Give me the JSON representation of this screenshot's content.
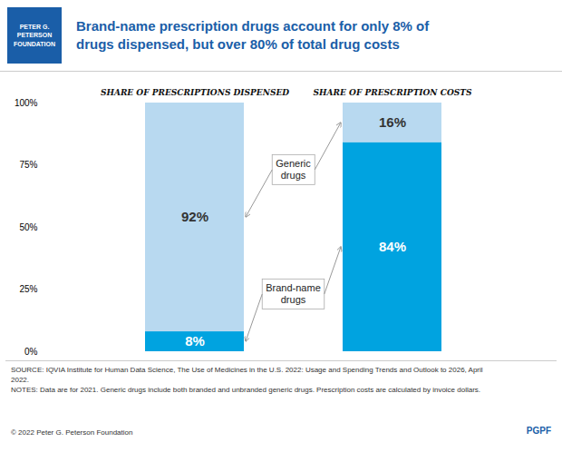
{
  "chart_data": {
    "type": "bar",
    "title": "Brand-name prescription drugs account for only 8% of\ndrugs dispensed, but over 80% of total drug costs",
    "categories": [
      "SHARE OF PRESCRIPTIONS DISPENSED",
      "SHARE OF PRESCRIPTION COSTS"
    ],
    "series": [
      {
        "name": "Generic\ndrugs",
        "color": "#b8d9f0",
        "values": [
          92,
          16
        ],
        "value_labels": [
          "92%",
          "16%"
        ]
      },
      {
        "name": "Brand-name\ndrugs",
        "color": "#00a3e0",
        "values": [
          8,
          84
        ],
        "value_labels": [
          "8%",
          "84%"
        ]
      }
    ],
    "stacked": true,
    "data_labels": true,
    "grid": false,
    "ylim": [
      0,
      100
    ],
    "yticks": [
      {
        "value": 0,
        "label": "0%"
      },
      {
        "value": 25,
        "label": "25%"
      },
      {
        "value": 50,
        "label": "50%"
      },
      {
        "value": 75,
        "label": "75%"
      },
      {
        "value": 100,
        "label": "100%"
      }
    ],
    "annotations": [
      "PETER G.\nPETERSON\nFOUNDATION",
      "SOURCE: IQVIA Institute for Human Data Science, The Use of Medicines in the U.S. 2022: Usage and Spending Trends and Outlook to 2026, April\n2022.\nNOTES: Data are for 2021. Generic drugs include both branded and unbranded generic drugs. Prescription costs are calculated by invoice dollars.",
      "© 2022 Peter G. Peterson Foundation",
      "PGPF"
    ]
  }
}
